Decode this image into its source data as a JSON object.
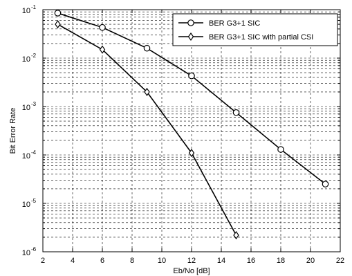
{
  "chart_data": {
    "type": "line",
    "title": "",
    "xlabel": "Eb/No [dB]",
    "ylabel": "Bit Error Rate",
    "xlim": [
      2,
      22
    ],
    "ylim": [
      1e-06,
      0.1
    ],
    "yscale": "log",
    "grid": "on (major and minor, dashed)",
    "legend_position": "top-right",
    "x_ticks": [
      2,
      4,
      6,
      8,
      10,
      12,
      14,
      16,
      18,
      20,
      22
    ],
    "x_tick_labels": [
      "2",
      "4",
      "6",
      "8",
      "10",
      "12",
      "14",
      "16",
      "18",
      "20",
      "22"
    ],
    "y_tick_exponents": [
      -1,
      -2,
      -3,
      -4,
      -5,
      -6
    ],
    "y_tick_base": "10",
    "series": [
      {
        "name": "BER G3+1 SIC",
        "marker": "circle",
        "color": "#000000",
        "x": [
          3,
          6,
          9,
          12,
          15,
          18,
          21
        ],
        "y": [
          0.085,
          0.043,
          0.016,
          0.0043,
          0.00075,
          0.00013,
          2.5e-05
        ]
      },
      {
        "name": "BER G3+1 SIC with partial CSI",
        "marker": "diamond",
        "color": "#000000",
        "x": [
          3,
          6,
          9,
          12,
          15
        ],
        "y": [
          0.05,
          0.015,
          0.002,
          0.00011,
          2.2e-06
        ]
      }
    ]
  }
}
